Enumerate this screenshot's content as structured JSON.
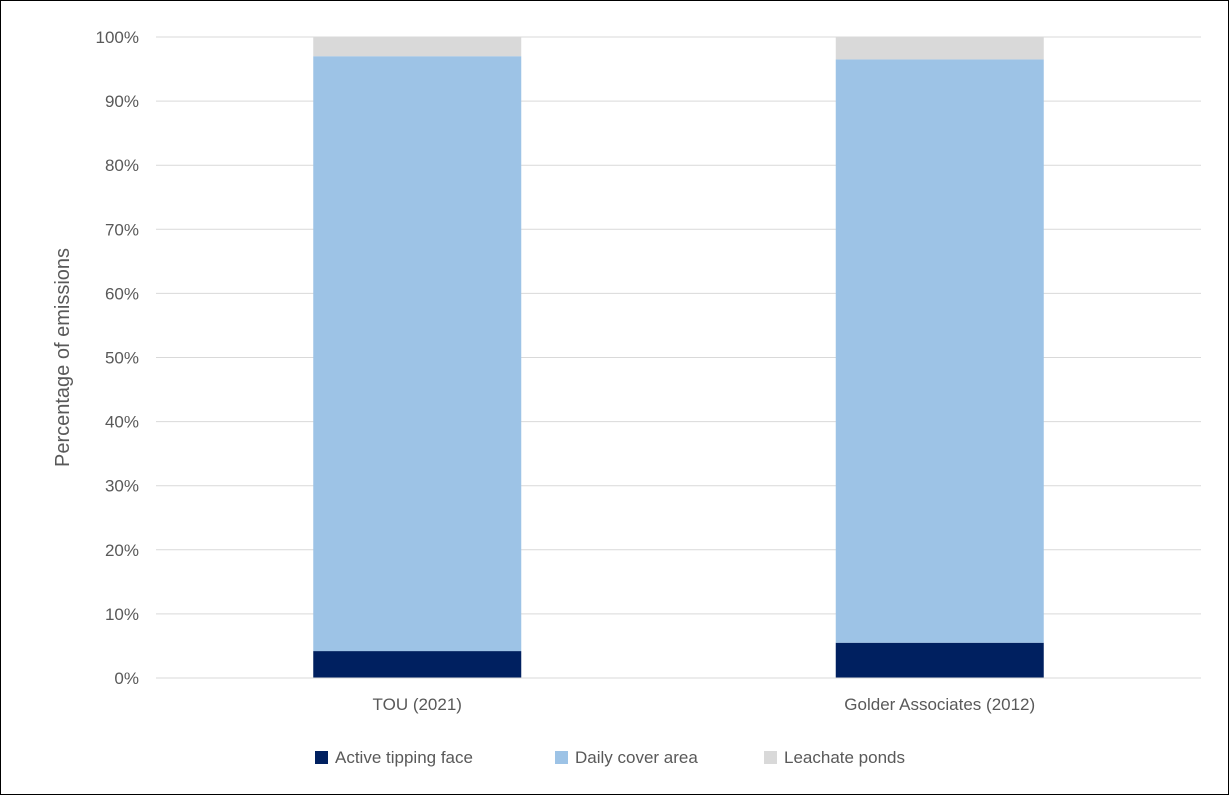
{
  "chart_data": {
    "type": "bar",
    "stacked": true,
    "percent_stacked": true,
    "categories": [
      "TOU (2021)",
      "Golder Associates (2012)"
    ],
    "series": [
      {
        "name": "Active tipping face",
        "color": "#002060",
        "values": [
          4.2,
          5.5
        ]
      },
      {
        "name": "Daily cover area",
        "color": "#9DC3E6",
        "values": [
          92.8,
          91.0
        ]
      },
      {
        "name": "Leachate ponds",
        "color": "#D9D9D9",
        "values": [
          3.0,
          3.5
        ]
      }
    ],
    "title": "",
    "xlabel": "",
    "ylabel": "Percentage of emissions",
    "ylim": [
      0,
      100
    ],
    "yticks": [
      "0%",
      "10%",
      "20%",
      "30%",
      "40%",
      "50%",
      "60%",
      "70%",
      "80%",
      "90%",
      "100%"
    ],
    "grid": true,
    "legend_position": "bottom",
    "gridline_color": "#D9D9D9",
    "axis_color": "#D9D9D9"
  }
}
